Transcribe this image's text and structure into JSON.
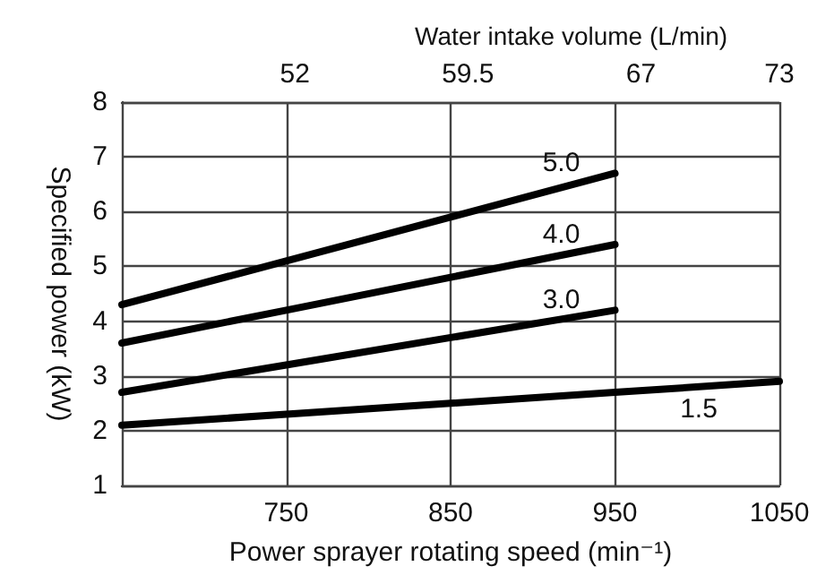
{
  "chart_data": {
    "type": "line",
    "xlabel": "Power sprayer rotating speed (min⁻¹)",
    "ylabel": "Specified power (kW)",
    "x2label": "Water intake volume (L/min)",
    "xlim": [
      650,
      1050
    ],
    "xticks": [
      750,
      850,
      950,
      1050
    ],
    "x2lim": [
      44.5,
      73
    ],
    "x2ticks": [
      52,
      59.5,
      67,
      73
    ],
    "ylim": [
      1,
      8
    ],
    "yticks": [
      1,
      2,
      3,
      4,
      5,
      6,
      7,
      8
    ],
    "grid": true,
    "legend": false,
    "marker": "none",
    "line_style": "solid",
    "series": [
      {
        "name": "5.0",
        "color": "#000000",
        "x": [
          650,
          750,
          850,
          950
        ],
        "values": [
          4.3,
          5.1,
          5.9,
          6.7
        ]
      },
      {
        "name": "4.0",
        "color": "#000000",
        "x": [
          650,
          750,
          850,
          950
        ],
        "values": [
          3.6,
          4.2,
          4.8,
          5.4
        ]
      },
      {
        "name": "3.0",
        "color": "#000000",
        "x": [
          650,
          750,
          850,
          950
        ],
        "values": [
          2.7,
          3.2,
          3.7,
          4.2
        ]
      },
      {
        "name": "1.5",
        "color": "#000000",
        "x": [
          650,
          750,
          850,
          950,
          1050
        ],
        "values": [
          2.1,
          2.3,
          2.5,
          2.7,
          2.9
        ]
      }
    ]
  }
}
